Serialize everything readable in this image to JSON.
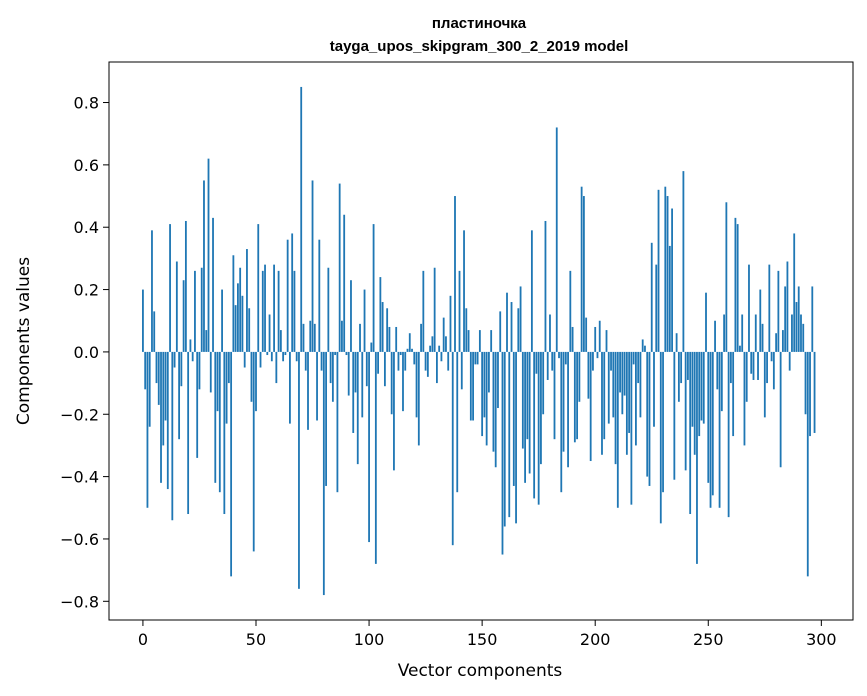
{
  "chart_data": {
    "type": "bar",
    "title": "пластиночка",
    "subtitle": "tayga_upos_skipgram_300_2_2019 model",
    "xlabel": "Vector components",
    "ylabel": "Components values",
    "xlim": [
      -15,
      314
    ],
    "ylim": [
      -0.86,
      0.93
    ],
    "xticks": [
      0,
      50,
      100,
      150,
      200,
      250,
      300
    ],
    "xtick_labels": [
      "0",
      "50",
      "100",
      "150",
      "200",
      "250",
      "300"
    ],
    "yticks": [
      -0.8,
      -0.6,
      -0.4,
      -0.2,
      0.0,
      0.2,
      0.4,
      0.6,
      0.8
    ],
    "ytick_labels": [
      "−0.8",
      "−0.6",
      "−0.4",
      "−0.2",
      "0.0",
      "0.2",
      "0.4",
      "0.6",
      "0.8"
    ],
    "grid": false,
    "bar_color": "#1f77b4",
    "values": [
      0.2,
      -0.12,
      -0.5,
      -0.24,
      0.39,
      0.13,
      -0.1,
      -0.17,
      -0.42,
      -0.3,
      -0.22,
      -0.44,
      0.41,
      -0.54,
      -0.05,
      0.29,
      -0.28,
      -0.11,
      0.23,
      0.42,
      -0.52,
      0.04,
      -0.03,
      0.26,
      -0.34,
      -0.12,
      0.27,
      0.55,
      0.07,
      0.62,
      -0.13,
      0.43,
      -0.42,
      -0.19,
      -0.45,
      0.2,
      -0.52,
      -0.23,
      -0.1,
      -0.72,
      0.31,
      0.15,
      0.22,
      0.27,
      0.18,
      -0.05,
      0.33,
      0.14,
      -0.16,
      -0.64,
      -0.19,
      0.41,
      -0.05,
      0.26,
      0.28,
      -0.01,
      0.12,
      -0.03,
      0.28,
      -0.1,
      0.26,
      0.07,
      -0.03,
      -0.01,
      0.36,
      -0.23,
      0.38,
      0.26,
      -0.03,
      -0.76,
      0.85,
      0.09,
      -0.06,
      -0.25,
      0.1,
      0.55,
      0.09,
      -0.22,
      0.36,
      -0.06,
      -0.78,
      -0.43,
      0.27,
      -0.1,
      -0.16,
      -0.01,
      -0.45,
      0.54,
      0.1,
      0.44,
      -0.01,
      -0.14,
      0.23,
      -0.26,
      -0.13,
      -0.36,
      0.09,
      -0.21,
      0.2,
      -0.11,
      -0.61,
      0.03,
      0.41,
      -0.68,
      -0.07,
      0.24,
      0.16,
      -0.11,
      0.14,
      0.08,
      -0.2,
      -0.38,
      0.08,
      -0.06,
      -0.01,
      -0.19,
      -0.06,
      0.01,
      0.06,
      0.01,
      -0.04,
      -0.21,
      -0.3,
      0.09,
      0.26,
      -0.06,
      -0.08,
      0.02,
      0.05,
      0.27,
      -0.1,
      0.02,
      -0.03,
      0.11,
      0.05,
      -0.06,
      0.18,
      -0.62,
      0.5,
      -0.45,
      0.26,
      -0.12,
      0.39,
      0.14,
      0.07,
      -0.22,
      -0.22,
      -0.04,
      -0.04,
      0.07,
      -0.27,
      -0.21,
      -0.3,
      -0.13,
      0.07,
      -0.32,
      -0.37,
      -0.18,
      0.13,
      -0.65,
      -0.56,
      0.19,
      -0.53,
      0.16,
      -0.43,
      -0.55,
      0.14,
      0.21,
      -0.31,
      -0.42,
      -0.28,
      -0.39,
      0.39,
      -0.47,
      -0.07,
      -0.49,
      -0.36,
      -0.2,
      0.42,
      -0.09,
      0.12,
      -0.06,
      -0.28,
      0.72,
      -0.02,
      -0.45,
      -0.32,
      -0.04,
      -0.37,
      0.26,
      0.08,
      -0.29,
      -0.28,
      -0.16,
      0.53,
      0.5,
      0.11,
      -0.15,
      -0.35,
      -0.06,
      0.08,
      -0.02,
      0.1,
      -0.33,
      -0.28,
      0.07,
      -0.23,
      -0.06,
      -0.21,
      -0.36,
      -0.5,
      -0.13,
      -0.2,
      -0.14,
      -0.33,
      -0.26,
      -0.49,
      -0.04,
      -0.3,
      -0.1,
      -0.21,
      0.04,
      0.02,
      -0.4,
      -0.43,
      0.35,
      -0.24,
      0.28,
      0.52,
      -0.55,
      -0.45,
      0.53,
      0.5,
      0.34,
      0.46,
      -0.41,
      0.06,
      -0.16,
      -0.1,
      0.58,
      -0.38,
      -0.09,
      -0.52,
      -0.24,
      -0.33,
      -0.68,
      -0.27,
      -0.22,
      -0.23,
      0.19,
      -0.42,
      -0.5,
      -0.46,
      0.1,
      -0.12,
      -0.5,
      -0.19,
      0.12,
      0.48,
      -0.53,
      -0.1,
      -0.27,
      0.43,
      0.41,
      0.02,
      0.12,
      -0.3,
      -0.16,
      0.28,
      -0.07,
      -0.09,
      0.12,
      -0.09,
      0.2,
      0.09,
      -0.21,
      -0.1,
      0.28,
      -0.03,
      -0.12,
      0.06,
      0.26,
      -0.37,
      0.07,
      0.21,
      0.29,
      -0.06,
      0.12,
      0.38,
      0.16,
      0.21,
      0.12,
      0.09,
      -0.2,
      -0.72,
      -0.27,
      0.21,
      -0.26
    ]
  }
}
